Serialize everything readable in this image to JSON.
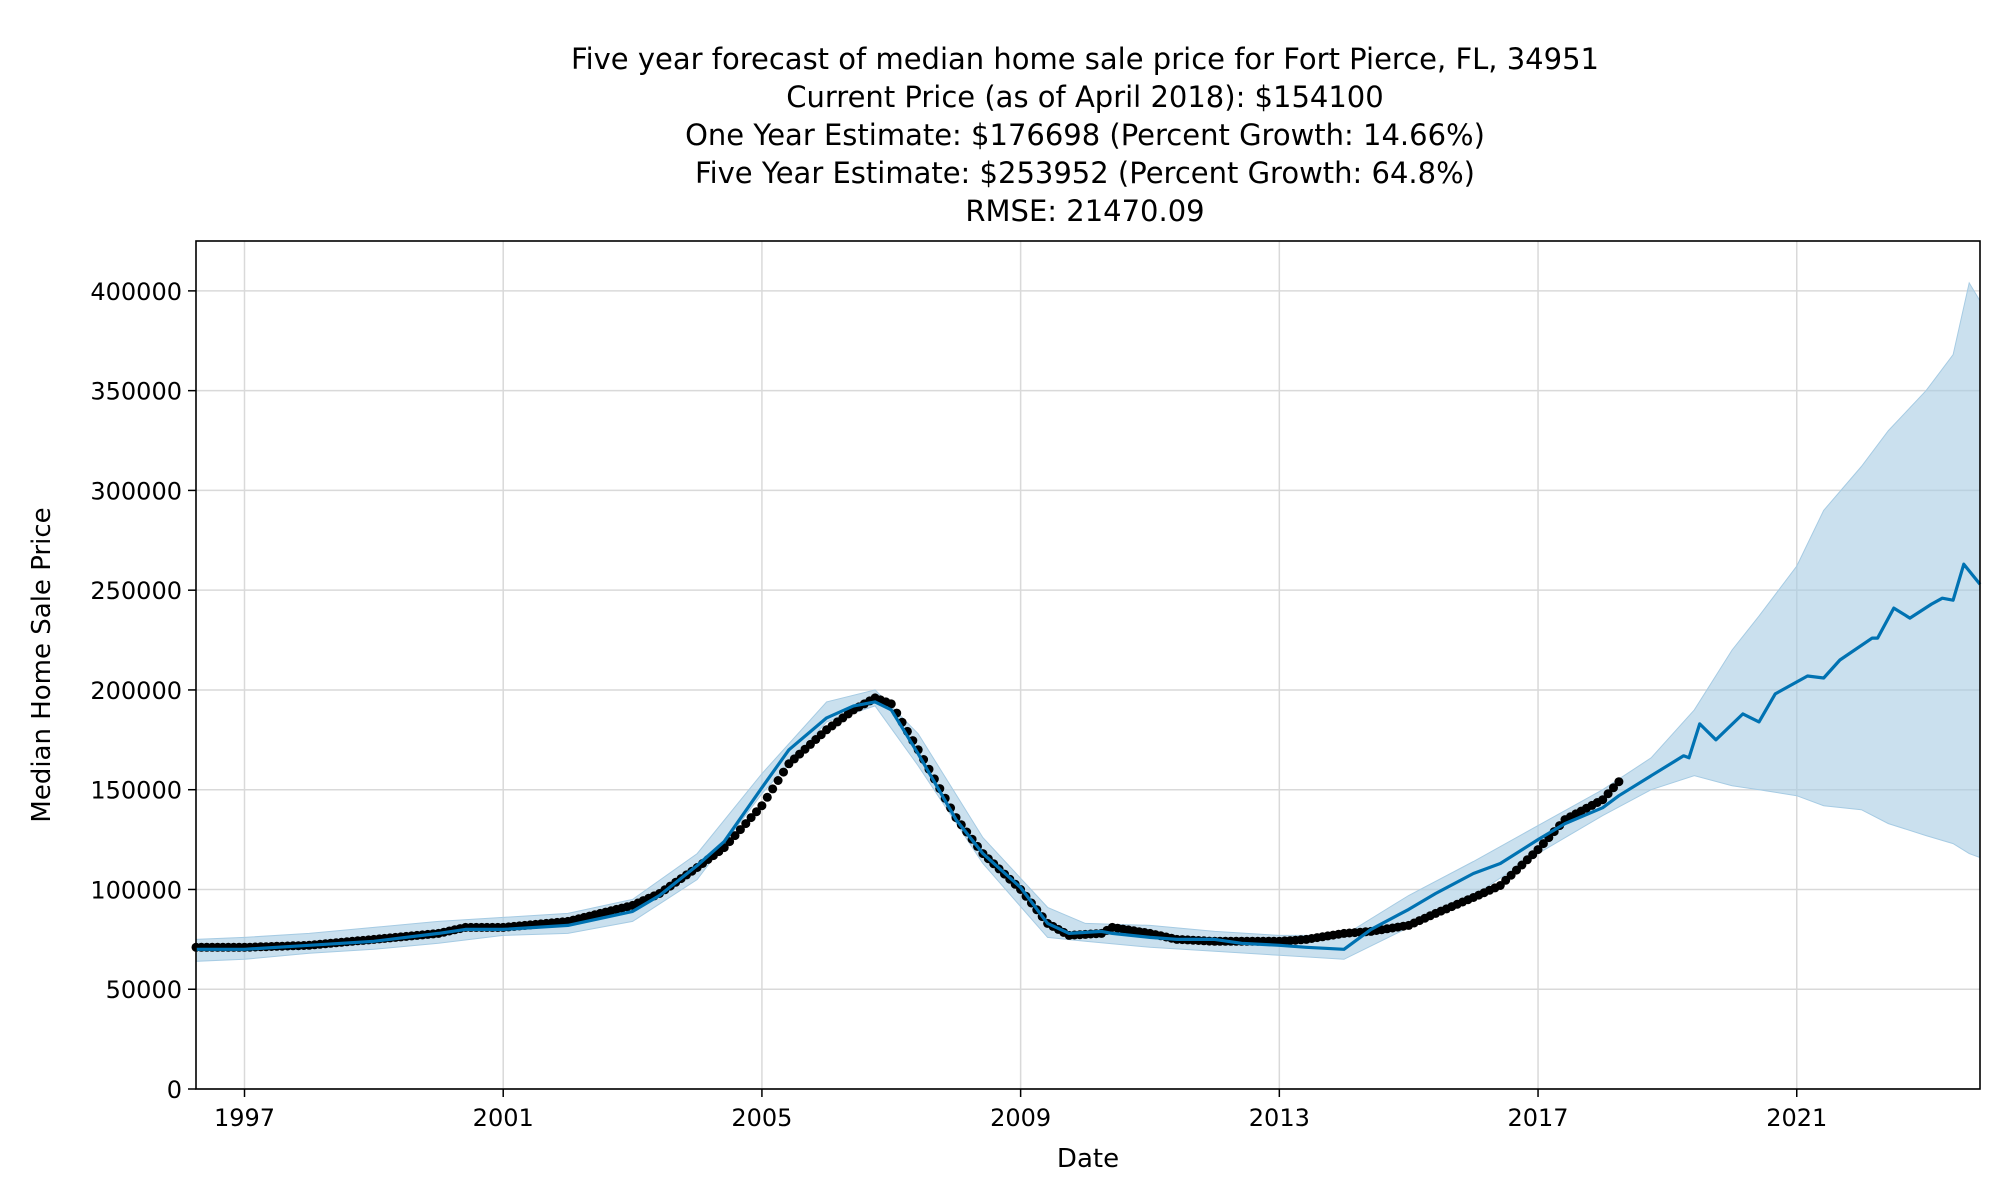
{
  "titles": {
    "line1": "Five year forecast of median home sale price for Fort Pierce, FL, 34951",
    "line2": "Current Price (as of April 2018): $154100",
    "line3": "One Year Estimate: $176698 (Percent Growth: 14.66%)",
    "line4": "Five Year Estimate: $253952 (Percent Growth: 64.8%)",
    "line5": "RMSE: 21470.09"
  },
  "chart_data": {
    "type": "line",
    "xlabel": "Date",
    "ylabel": "Median Home Sale Price",
    "xlim": [
      "1996-04",
      "2023-11"
    ],
    "ylim": [
      0,
      425000
    ],
    "x_ticks": [
      "1997",
      "2001",
      "2005",
      "2009",
      "2013",
      "2017",
      "2021"
    ],
    "y_ticks": [
      0,
      50000,
      100000,
      150000,
      200000,
      250000,
      300000,
      350000,
      400000
    ],
    "grid": true,
    "colors": {
      "forecast": "#0072b2",
      "band": "#a6cbe3",
      "observed": "#000000"
    },
    "series": [
      {
        "role": "observed",
        "style": "points",
        "x": [
          "1996-04",
          "1997-01",
          "1998-01",
          "1999-01",
          "2000-01",
          "2000-06",
          "2001-01",
          "2002-01",
          "2003-01",
          "2003-06",
          "2004-01",
          "2004-06",
          "2005-01",
          "2005-06",
          "2006-01",
          "2006-06",
          "2006-10",
          "2007-01",
          "2007-06",
          "2008-01",
          "2008-06",
          "2009-01",
          "2009-06",
          "2009-10",
          "2010-04",
          "2010-06",
          "2011-01",
          "2011-06",
          "2012-01",
          "2012-06",
          "2013-01",
          "2013-06",
          "2014-01",
          "2014-06",
          "2015-01",
          "2015-06",
          "2016-01",
          "2016-06",
          "2017-01",
          "2017-06",
          "2018-01",
          "2018-04"
        ],
        "y": [
          71000,
          71000,
          72000,
          75000,
          78000,
          81000,
          81000,
          84000,
          92000,
          98000,
          111000,
          121000,
          142000,
          163000,
          180000,
          190000,
          196000,
          193000,
          170000,
          136000,
          118000,
          100000,
          83000,
          77000,
          78000,
          81000,
          78000,
          75000,
          74000,
          74000,
          74000,
          75000,
          78000,
          79000,
          82000,
          88000,
          96000,
          102000,
          120000,
          135000,
          145000,
          154000
        ]
      },
      {
        "role": "forecast",
        "style": "line",
        "x": [
          "1996-04",
          "1997-01",
          "1998-01",
          "1999-01",
          "2000-01",
          "2000-06",
          "2001-01",
          "2002-01",
          "2003-01",
          "2003-06",
          "2004-01",
          "2004-06",
          "2005-01",
          "2005-06",
          "2006-01",
          "2006-06",
          "2006-10",
          "2007-01",
          "2007-06",
          "2008-01",
          "2008-06",
          "2009-01",
          "2009-06",
          "2009-10",
          "2010-04",
          "2010-06",
          "2011-01",
          "2011-06",
          "2012-01",
          "2012-06",
          "2013-01",
          "2013-06",
          "2014-01",
          "2014-06",
          "2015-01",
          "2015-06",
          "2016-01",
          "2016-06",
          "2017-01",
          "2017-06",
          "2018-01",
          "2018-04",
          "2018-10",
          "2019-04",
          "2019-05",
          "2019-07",
          "2019-10",
          "2020-03",
          "2020-06",
          "2020-09",
          "2021-03",
          "2021-06",
          "2021-09",
          "2022-03",
          "2022-04",
          "2022-07",
          "2022-10",
          "2023-02",
          "2023-04",
          "2023-06",
          "2023-08",
          "2023-11"
        ],
        "y": [
          70000,
          70000,
          72000,
          74000,
          78000,
          80000,
          80000,
          82000,
          89000,
          97000,
          112000,
          124000,
          151000,
          170000,
          186000,
          192000,
          194000,
          190000,
          168000,
          135000,
          118000,
          101000,
          83000,
          78000,
          79000,
          78000,
          76000,
          75000,
          75000,
          73000,
          72000,
          71000,
          70000,
          80000,
          90000,
          98000,
          108000,
          113000,
          125000,
          133000,
          141000,
          147000,
          157000,
          167000,
          166000,
          183000,
          175000,
          188000,
          184000,
          198000,
          207000,
          206000,
          215000,
          226000,
          226000,
          241000,
          236000,
          243000,
          246000,
          245000,
          263000,
          253000
        ]
      },
      {
        "role": "uncertainty",
        "style": "band",
        "x": [
          "1996-04",
          "1997-01",
          "1998-01",
          "1999-01",
          "2000-01",
          "2001-01",
          "2002-01",
          "2003-01",
          "2004-01",
          "2005-01",
          "2006-01",
          "2006-10",
          "2007-06",
          "2008-06",
          "2009-06",
          "2010-01",
          "2011-01",
          "2012-01",
          "2013-01",
          "2014-01",
          "2015-01",
          "2016-01",
          "2017-01",
          "2018-01",
          "2018-10",
          "2019-06",
          "2020-01",
          "2020-06",
          "2021-01",
          "2021-06",
          "2022-01",
          "2022-06",
          "2023-01",
          "2023-06",
          "2023-09",
          "2023-11"
        ],
        "upper": [
          75000,
          76000,
          78000,
          81000,
          84000,
          86000,
          88000,
          95000,
          118000,
          158000,
          194000,
          200000,
          178000,
          126000,
          91000,
          83000,
          82000,
          79000,
          77000,
          77000,
          97000,
          114000,
          132000,
          150000,
          166000,
          190000,
          220000,
          237000,
          262000,
          290000,
          312000,
          330000,
          350000,
          368000,
          404000,
          395000
        ],
        "lower": [
          64000,
          65000,
          68000,
          70000,
          73000,
          77000,
          78000,
          84000,
          105000,
          148000,
          184000,
          192000,
          162000,
          113000,
          76000,
          74000,
          71000,
          69000,
          67000,
          65000,
          81000,
          97000,
          118000,
          137000,
          150000,
          157000,
          152000,
          150000,
          147000,
          142000,
          140000,
          133000,
          127000,
          123000,
          118000,
          116000
        ]
      }
    ]
  }
}
